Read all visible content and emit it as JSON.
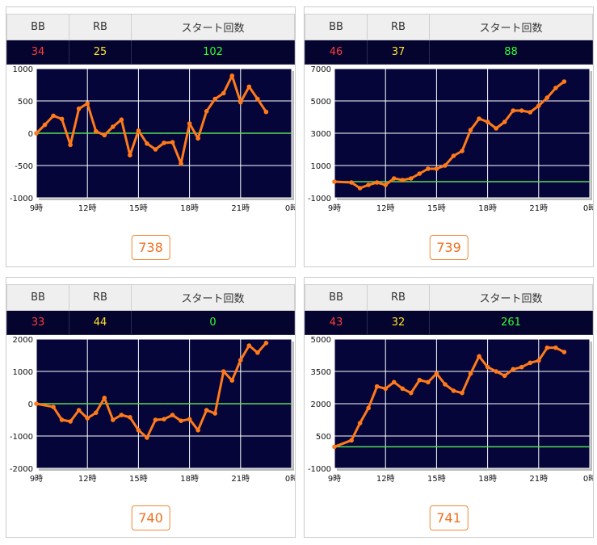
{
  "headers": {
    "bb": "BB",
    "rb": "RB",
    "start": "スタート回数"
  },
  "colors": {
    "bb": "#ff3b3b",
    "rb": "#ffe02a",
    "start": "#33ff33",
    "line": "#ff7a1a",
    "zero": "#55dd55",
    "plot_bg": "#05053a",
    "grid": "#ffffff"
  },
  "machines": [
    {
      "bb": "34",
      "rb": "25",
      "start": "102",
      "number": "738"
    },
    {
      "bb": "46",
      "rb": "37",
      "start": "88",
      "number": "739"
    },
    {
      "bb": "33",
      "rb": "44",
      "start": "0",
      "number": "740"
    },
    {
      "bb": "43",
      "rb": "32",
      "start": "261",
      "number": "741"
    }
  ],
  "chart_data": [
    {
      "type": "line",
      "x_tick_labels": [
        "9時",
        "12時",
        "15時",
        "18時",
        "21時",
        "0時"
      ],
      "y_tick_labels": [
        "1000",
        "500",
        "0",
        "-500",
        "-1000"
      ],
      "ylim": [
        -1000,
        1000
      ],
      "x_range_hours": [
        9,
        24
      ],
      "grid": true,
      "x": [
        9,
        9.5,
        10,
        10.5,
        11,
        11.5,
        12,
        12.5,
        13,
        13.5,
        14,
        14.5,
        15,
        15.5,
        16,
        16.5,
        17,
        17.5,
        18,
        18.5,
        19,
        19.5,
        20,
        20.5,
        21,
        21.5,
        22,
        22.5
      ],
      "y": [
        0,
        130,
        270,
        220,
        -180,
        380,
        460,
        30,
        -30,
        100,
        210,
        -340,
        40,
        -160,
        -250,
        -150,
        -140,
        -470,
        150,
        -80,
        340,
        530,
        620,
        890,
        480,
        720,
        530,
        330
      ]
    },
    {
      "type": "line",
      "x_tick_labels": [
        "9時",
        "12時",
        "15時",
        "18時",
        "21時",
        "0時"
      ],
      "y_tick_labels": [
        "7000",
        "5000",
        "3000",
        "1000",
        "-1000"
      ],
      "ylim": [
        -1000,
        7000
      ],
      "x_range_hours": [
        9,
        24
      ],
      "grid": true,
      "x": [
        9,
        10,
        10.5,
        11,
        11.5,
        12,
        12.5,
        13,
        13.5,
        14,
        14.5,
        15,
        15.5,
        16,
        16.5,
        17,
        17.5,
        18,
        18.5,
        19,
        19.5,
        20,
        20.5,
        21,
        21.5,
        22,
        22.5
      ],
      "y": [
        0,
        -50,
        -400,
        -200,
        -50,
        -200,
        200,
        100,
        200,
        500,
        800,
        800,
        1000,
        1600,
        1900,
        3200,
        3900,
        3700,
        3300,
        3700,
        4400,
        4400,
        4300,
        4700,
        5200,
        5800,
        6200
      ]
    },
    {
      "type": "line",
      "x_tick_labels": [
        "9時",
        "12時",
        "15時",
        "18時",
        "21時",
        "0時"
      ],
      "y_tick_labels": [
        "2000",
        "1000",
        "0",
        "-1000",
        "-2000"
      ],
      "ylim": [
        -2000,
        2000
      ],
      "x_range_hours": [
        9,
        24
      ],
      "grid": true,
      "x": [
        9,
        10,
        10.5,
        11,
        11.5,
        12,
        12.5,
        13,
        13.5,
        14,
        14.5,
        15,
        15.5,
        16,
        16.5,
        17,
        17.5,
        18,
        18.5,
        19,
        19.5,
        20,
        20.5,
        21,
        21.5,
        22,
        22.5
      ],
      "y": [
        0,
        -100,
        -500,
        -550,
        -200,
        -450,
        -280,
        180,
        -500,
        -350,
        -420,
        -820,
        -1050,
        -500,
        -480,
        -350,
        -530,
        -480,
        -820,
        -200,
        -300,
        1000,
        720,
        1350,
        1800,
        1580,
        1880
      ]
    },
    {
      "type": "line",
      "x_tick_labels": [
        "9時",
        "12時",
        "15時",
        "18時",
        "21時",
        "0時"
      ],
      "y_tick_labels": [
        "5000",
        "3500",
        "2000",
        "500",
        "-1000"
      ],
      "ylim": [
        -1000,
        5000
      ],
      "x_range_hours": [
        9,
        24
      ],
      "grid": true,
      "x": [
        9,
        10,
        10.5,
        11,
        11.5,
        12,
        12.5,
        13,
        13.5,
        14,
        14.5,
        15,
        15.5,
        16,
        16.5,
        17,
        17.5,
        18,
        18.5,
        19,
        19.5,
        20,
        20.5,
        21,
        21.5,
        22,
        22.5
      ],
      "y": [
        0,
        300,
        1100,
        1800,
        2800,
        2700,
        3000,
        2700,
        2500,
        3100,
        3000,
        3400,
        2900,
        2600,
        2500,
        3400,
        4200,
        3700,
        3500,
        3300,
        3600,
        3700,
        3900,
        4000,
        4600,
        4600,
        4400
      ]
    }
  ]
}
